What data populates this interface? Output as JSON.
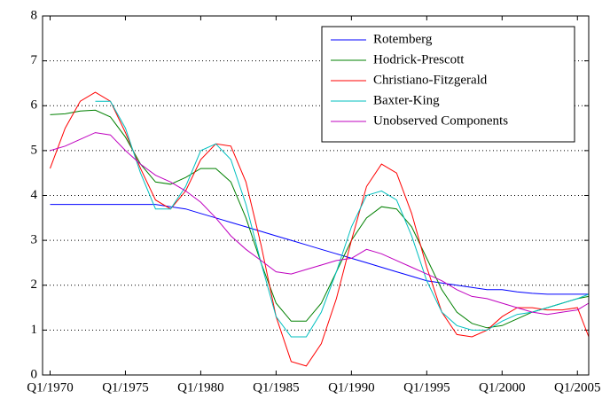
{
  "chart_data": {
    "type": "line",
    "x": [
      1970,
      1971,
      1972,
      1973,
      1974,
      1975,
      1976,
      1977,
      1978,
      1979,
      1980,
      1981,
      1982,
      1983,
      1984,
      1985,
      1986,
      1987,
      1988,
      1989,
      1990,
      1991,
      1992,
      1993,
      1994,
      1995,
      1996,
      1997,
      1998,
      1999,
      2000,
      2001,
      2002,
      2003,
      2004,
      2005,
      2005.75
    ],
    "xlim": [
      1969.5,
      2005.75
    ],
    "xticks": [
      {
        "value": 1970,
        "label": "Q1/1970"
      },
      {
        "value": 1975,
        "label": "Q1/1975"
      },
      {
        "value": 1980,
        "label": "Q1/1980"
      },
      {
        "value": 1985,
        "label": "Q1/1985"
      },
      {
        "value": 1990,
        "label": "Q1/1990"
      },
      {
        "value": 1995,
        "label": "Q1/1995"
      },
      {
        "value": 2000,
        "label": "Q1/2000"
      },
      {
        "value": 2005,
        "label": "Q1/2005"
      }
    ],
    "ylim": [
      0,
      8
    ],
    "yticks": [
      0,
      1,
      2,
      3,
      4,
      5,
      6,
      7,
      8
    ],
    "grid": true,
    "legend": "upper right",
    "series": [
      {
        "name": "Rotemberg",
        "color": "#0000ff",
        "values": [
          3.8,
          3.8,
          3.8,
          3.8,
          3.8,
          3.8,
          3.8,
          3.8,
          3.75,
          3.7,
          3.6,
          3.5,
          3.4,
          3.3,
          3.2,
          3.1,
          3.0,
          2.9,
          2.8,
          2.7,
          2.6,
          2.5,
          2.4,
          2.3,
          2.2,
          2.1,
          2.05,
          2.0,
          1.95,
          1.9,
          1.9,
          1.85,
          1.82,
          1.8,
          1.8,
          1.8,
          1.8
        ]
      },
      {
        "name": "Hodrick-Prescott",
        "color": "#008000",
        "values": [
          5.8,
          5.82,
          5.88,
          5.9,
          5.75,
          5.3,
          4.7,
          4.3,
          4.25,
          4.4,
          4.6,
          4.6,
          4.3,
          3.5,
          2.5,
          1.6,
          1.2,
          1.2,
          1.6,
          2.3,
          3.0,
          3.5,
          3.75,
          3.7,
          3.3,
          2.6,
          1.9,
          1.4,
          1.15,
          1.05,
          1.1,
          1.25,
          1.4,
          1.5,
          1.6,
          1.7,
          1.75
        ]
      },
      {
        "name": "Christiano-Fitzgerald",
        "color": "#ff0000",
        "values": [
          4.6,
          5.5,
          6.1,
          6.3,
          6.1,
          5.4,
          4.6,
          3.9,
          3.7,
          4.1,
          4.8,
          5.15,
          5.1,
          4.3,
          2.9,
          1.3,
          0.3,
          0.2,
          0.7,
          1.7,
          3.0,
          4.2,
          4.7,
          4.5,
          3.6,
          2.4,
          1.4,
          0.9,
          0.85,
          1.0,
          1.3,
          1.5,
          1.5,
          1.45,
          1.45,
          1.5,
          0.85
        ]
      },
      {
        "name": "Baxter-King",
        "color": "#00bfbf",
        "values": [
          null,
          null,
          null,
          6.1,
          6.1,
          5.5,
          4.5,
          3.7,
          3.7,
          4.2,
          5.0,
          5.15,
          4.8,
          3.8,
          2.5,
          1.3,
          0.85,
          0.85,
          1.4,
          2.3,
          3.3,
          4.0,
          4.1,
          3.9,
          3.1,
          2.1,
          1.4,
          1.1,
          1.0,
          1.0,
          1.2,
          1.35,
          1.4,
          1.5,
          1.6,
          1.7,
          1.8
        ]
      },
      {
        "name": "Unobserved Components",
        "color": "#bf00bf",
        "values": [
          5.0,
          5.1,
          5.25,
          5.4,
          5.35,
          5.0,
          4.7,
          4.45,
          4.3,
          4.1,
          3.85,
          3.5,
          3.1,
          2.8,
          2.55,
          2.3,
          2.25,
          2.35,
          2.45,
          2.55,
          2.6,
          2.8,
          2.7,
          2.55,
          2.4,
          2.25,
          2.1,
          1.9,
          1.75,
          1.7,
          1.6,
          1.5,
          1.4,
          1.35,
          1.4,
          1.45,
          1.6
        ]
      }
    ]
  }
}
